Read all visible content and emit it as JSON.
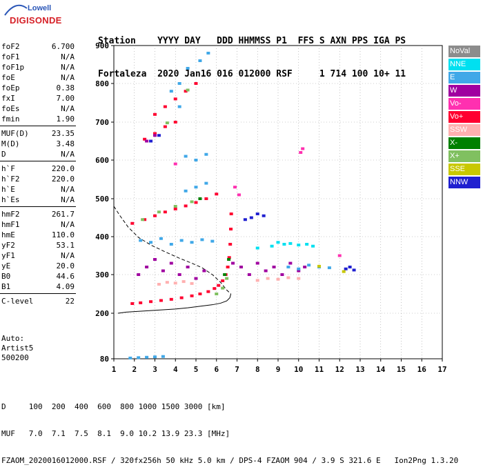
{
  "logo": {
    "line1": "Lowell",
    "line2": "DIGISONDE"
  },
  "header": {
    "line1": "Station    YYYY DAY   DDD HHMMSS P1  FFS S AXN PPS IGA PS",
    "line2": "Fortaleza  2020 Jan16 016 012000 RSF     1 714 100 10+ 11"
  },
  "params": {
    "group1": [
      {
        "k": "foF2",
        "v": "6.700"
      },
      {
        "k": "foF1",
        "v": "N/A"
      },
      {
        "k": "foF1p",
        "v": "N/A"
      },
      {
        "k": "foE",
        "v": "N/A"
      },
      {
        "k": "foEp",
        "v": "0.38"
      },
      {
        "k": "fxI",
        "v": "7.00"
      },
      {
        "k": "foEs",
        "v": "N/A"
      },
      {
        "k": "fmin",
        "v": "1.90"
      }
    ],
    "group2": [
      {
        "k": "MUF(D)",
        "v": "23.35"
      },
      {
        "k": "M(D)",
        "v": "3.48"
      },
      {
        "k": "D",
        "v": "N/A"
      }
    ],
    "group3": [
      {
        "k": "h`F",
        "v": "220.0"
      },
      {
        "k": "h`F2",
        "v": "220.0"
      },
      {
        "k": "h`E",
        "v": "N/A"
      },
      {
        "k": "h`Es",
        "v": "N/A"
      }
    ],
    "group4": [
      {
        "k": "hmF2",
        "v": "261.7"
      },
      {
        "k": "hmF1",
        "v": "N/A"
      },
      {
        "k": "hmE",
        "v": "110.0"
      },
      {
        "k": "yF2",
        "v": "53.1"
      },
      {
        "k": "yF1",
        "v": "N/A"
      },
      {
        "k": "yE",
        "v": "20.0"
      },
      {
        "k": "B0",
        "v": "44.6"
      },
      {
        "k": "B1",
        "v": "4.09"
      }
    ],
    "group5": [
      {
        "k": "C-level",
        "v": "22"
      }
    ]
  },
  "auto": {
    "line1": "Auto:",
    "line2": "Artist5",
    "line3": "500200"
  },
  "legend": [
    {
      "label": "NoVal",
      "color": "#8c8c8c"
    },
    {
      "label": "NNE",
      "color": "#00e0f0"
    },
    {
      "label": "E",
      "color": "#40a8e8"
    },
    {
      "label": "W",
      "color": "#a000a0"
    },
    {
      "label": "Vo-",
      "color": "#ff30b0"
    },
    {
      "label": "Vo+",
      "color": "#ff0030"
    },
    {
      "label": "SSW",
      "color": "#ffb0b0"
    },
    {
      "label": "X-",
      "color": "#008000"
    },
    {
      "label": "X+",
      "color": "#80c060"
    },
    {
      "label": "SSE",
      "color": "#c8c800"
    },
    {
      "label": "NNW",
      "color": "#2020d0"
    }
  ],
  "footer": {
    "line1": "D     100  200  400  600  800 1000 1500 3000 [km]",
    "line2": "MUF   7.0  7.1  7.5  8.1  9.0 10.2 13.9 23.3 [MHz]",
    "line3": "FZAOM_2020016012000.RSF / 320fx256h 50 kHz 5.0 km / DPS-4 FZAOM 904 / 3.9 S 321.6 E   Ion2Png 1.3.20"
  },
  "chart_data": {
    "type": "scatter",
    "title": "",
    "xlabel": "",
    "ylabel": "",
    "xlim": [
      1,
      17
    ],
    "ylim": [
      80,
      900
    ],
    "xticks": [
      1,
      2,
      3,
      4,
      5,
      6,
      7,
      8,
      9,
      10,
      11,
      12,
      13,
      14,
      15,
      16,
      17
    ],
    "yticks": [
      80,
      200,
      300,
      400,
      500,
      600,
      700,
      800,
      900
    ],
    "grid": true,
    "legend_position": "right",
    "series": [
      {
        "name": "Vo+",
        "color": "#ff0030",
        "points": [
          [
            1.9,
            225
          ],
          [
            2.3,
            227
          ],
          [
            2.8,
            230
          ],
          [
            3.3,
            233
          ],
          [
            3.8,
            236
          ],
          [
            4.3,
            240
          ],
          [
            4.8,
            245
          ],
          [
            5.2,
            250
          ],
          [
            5.6,
            256
          ],
          [
            5.9,
            264
          ],
          [
            6.1,
            272
          ],
          [
            6.3,
            284
          ],
          [
            6.45,
            300
          ],
          [
            6.55,
            320
          ],
          [
            6.62,
            345
          ],
          [
            6.67,
            380
          ],
          [
            6.7,
            420
          ],
          [
            6.72,
            460
          ],
          [
            1.9,
            435
          ],
          [
            2.5,
            445
          ],
          [
            3.0,
            455
          ],
          [
            3.5,
            465
          ],
          [
            4.0,
            473
          ],
          [
            4.5,
            481
          ],
          [
            5.0,
            490
          ],
          [
            5.5,
            500
          ],
          [
            6.0,
            512
          ],
          [
            2.5,
            655
          ],
          [
            3.0,
            670
          ],
          [
            3.5,
            688
          ],
          [
            4.0,
            700
          ],
          [
            3.0,
            720
          ],
          [
            3.5,
            740
          ],
          [
            4.0,
            760
          ],
          [
            4.5,
            780
          ],
          [
            5.0,
            800
          ]
        ]
      },
      {
        "name": "W",
        "color": "#a000a0",
        "points": [
          [
            2.2,
            300
          ],
          [
            2.6,
            320
          ],
          [
            3.0,
            340
          ],
          [
            3.4,
            310
          ],
          [
            3.8,
            330
          ],
          [
            4.2,
            300
          ],
          [
            4.6,
            320
          ],
          [
            5.0,
            290
          ],
          [
            5.4,
            310
          ],
          [
            6.8,
            330
          ],
          [
            7.2,
            320
          ],
          [
            7.6,
            300
          ],
          [
            8.0,
            330
          ],
          [
            8.4,
            310
          ],
          [
            8.8,
            320
          ],
          [
            9.2,
            300
          ],
          [
            9.6,
            330
          ],
          [
            10.0,
            310
          ],
          [
            10.3,
            320
          ],
          [
            2.6,
            650
          ],
          [
            3.0,
            665
          ]
        ]
      },
      {
        "name": "E",
        "color": "#40a8e8",
        "points": [
          [
            1.8,
            82
          ],
          [
            2.2,
            83
          ],
          [
            2.6,
            84
          ],
          [
            3.0,
            85
          ],
          [
            3.4,
            86
          ],
          [
            2.3,
            390
          ],
          [
            2.8,
            385
          ],
          [
            3.3,
            395
          ],
          [
            3.8,
            380
          ],
          [
            4.3,
            390
          ],
          [
            4.8,
            385
          ],
          [
            5.3,
            392
          ],
          [
            5.8,
            388
          ],
          [
            9.5,
            320
          ],
          [
            10.0,
            315
          ],
          [
            10.5,
            325
          ],
          [
            11.0,
            320
          ],
          [
            11.5,
            318
          ],
          [
            4.5,
            520
          ],
          [
            5.0,
            530
          ],
          [
            5.5,
            540
          ],
          [
            4.5,
            610
          ],
          [
            5.0,
            600
          ],
          [
            5.5,
            615
          ],
          [
            4.2,
            800
          ],
          [
            4.6,
            840
          ],
          [
            5.2,
            860
          ],
          [
            5.6,
            880
          ],
          [
            3.8,
            780
          ],
          [
            4.2,
            740
          ]
        ]
      },
      {
        "name": "NNE",
        "color": "#00e0f0",
        "points": [
          [
            8.7,
            375
          ],
          [
            9.0,
            385
          ],
          [
            9.3,
            380
          ],
          [
            9.6,
            382
          ],
          [
            10.0,
            378
          ],
          [
            10.4,
            380
          ],
          [
            10.7,
            375
          ],
          [
            8.0,
            370
          ]
        ]
      },
      {
        "name": "SSW",
        "color": "#ffb0b0",
        "points": [
          [
            3.2,
            275
          ],
          [
            3.6,
            280
          ],
          [
            4.0,
            278
          ],
          [
            4.4,
            282
          ],
          [
            4.8,
            277
          ],
          [
            8.0,
            285
          ],
          [
            8.5,
            290
          ],
          [
            9.0,
            288
          ],
          [
            9.5,
            292
          ],
          [
            10.0,
            290
          ]
        ]
      },
      {
        "name": "X+",
        "color": "#80c060",
        "points": [
          [
            6.0,
            250
          ],
          [
            6.3,
            265
          ],
          [
            6.5,
            290
          ],
          [
            2.4,
            445
          ],
          [
            3.2,
            465
          ],
          [
            4.0,
            480
          ],
          [
            4.8,
            492
          ],
          [
            3.6,
            698
          ],
          [
            4.6,
            783
          ]
        ]
      },
      {
        "name": "X-",
        "color": "#008000",
        "points": [
          [
            6.4,
            300
          ],
          [
            6.6,
            340
          ],
          [
            5.2,
            500
          ]
        ]
      },
      {
        "name": "NNW",
        "color": "#2020d0",
        "points": [
          [
            7.4,
            445
          ],
          [
            7.7,
            450
          ],
          [
            8.0,
            460
          ],
          [
            8.3,
            455
          ],
          [
            12.3,
            315
          ],
          [
            12.5,
            320
          ],
          [
            12.7,
            312
          ],
          [
            2.8,
            650
          ],
          [
            3.2,
            665
          ]
        ]
      },
      {
        "name": "Vo-",
        "color": "#ff30b0",
        "points": [
          [
            6.9,
            530
          ],
          [
            7.1,
            510
          ],
          [
            10.1,
            620
          ],
          [
            10.2,
            630
          ],
          [
            12.0,
            350
          ],
          [
            4.0,
            590
          ]
        ]
      },
      {
        "name": "SSE",
        "color": "#c8c800",
        "points": [
          [
            12.2,
            308
          ],
          [
            11.0,
            322
          ]
        ]
      }
    ],
    "profile_curve": [
      [
        6.7,
        250
      ],
      [
        6.65,
        240
      ],
      [
        6.5,
        232
      ],
      [
        6.2,
        226
      ],
      [
        5.8,
        222
      ],
      [
        5.2,
        218
      ],
      [
        4.6,
        214
      ],
      [
        4.0,
        211
      ],
      [
        3.4,
        209
      ],
      [
        2.8,
        207
      ],
      [
        2.2,
        205
      ],
      [
        1.6,
        203
      ],
      [
        1.2,
        200
      ]
    ],
    "dashed_curve": [
      [
        1.0,
        480
      ],
      [
        1.3,
        455
      ],
      [
        1.7,
        425
      ],
      [
        2.2,
        398
      ],
      [
        2.8,
        378
      ],
      [
        3.5,
        360
      ],
      [
        4.2,
        343
      ],
      [
        4.8,
        330
      ],
      [
        5.3,
        318
      ],
      [
        5.8,
        300
      ],
      [
        6.2,
        280
      ],
      [
        6.5,
        260
      ],
      [
        6.7,
        250
      ]
    ]
  }
}
